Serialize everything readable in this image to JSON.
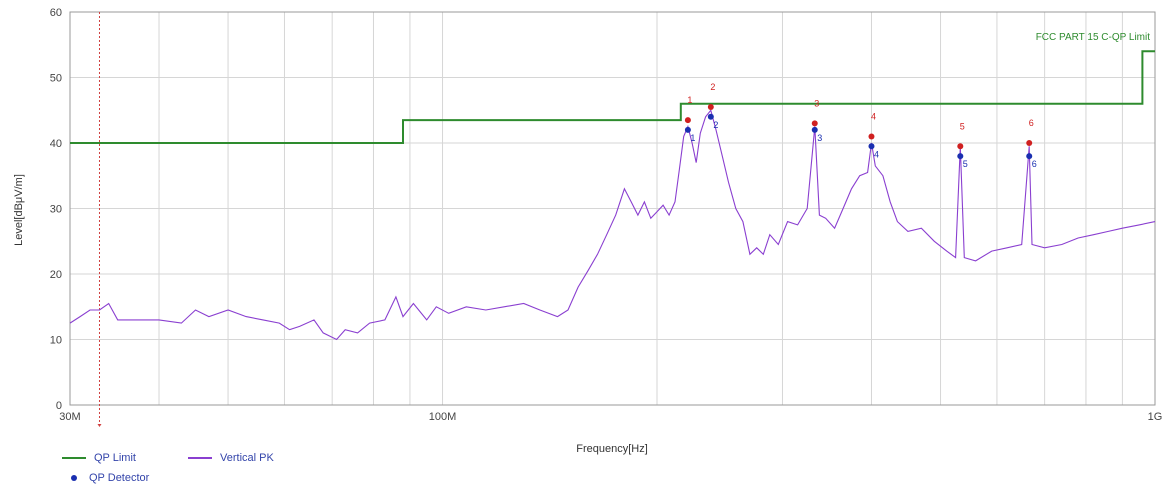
{
  "chart_data": {
    "type": "line",
    "xscale": "log",
    "xlabel": "Frequency[Hz]",
    "ylabel": "Level[dBμV/m]",
    "xlim": [
      30000000,
      1000000000
    ],
    "ylim": [
      0,
      60
    ],
    "grid": true,
    "x_ticks": [
      {
        "value": 30000000,
        "label": "30M"
      },
      {
        "value": 100000000,
        "label": "100M"
      },
      {
        "value": 1000000000,
        "label": "1G"
      }
    ],
    "y_ticks": [
      0,
      10,
      20,
      30,
      40,
      50,
      60
    ],
    "limit_label": "FCC PART 15 C-QP Limit",
    "colors": {
      "limit": "#2e8b2e",
      "pk": "#8a3fd0",
      "qp": "#1a2fb0",
      "peak_marker": "#d02020",
      "marker_line": "#d04040",
      "grid": "#d6d6d6"
    },
    "marker_frequency": 33000000,
    "series": [
      {
        "name": "QP Limit",
        "kind": "step",
        "points": [
          [
            30000000,
            40.0
          ],
          [
            88000000,
            40.0
          ],
          [
            88000000,
            43.5
          ],
          [
            216000000,
            43.5
          ],
          [
            216000000,
            46.0
          ],
          [
            960000000,
            46.0
          ],
          [
            960000000,
            54.0
          ],
          [
            1000000000,
            54.0
          ]
        ]
      },
      {
        "name": "Vertical PK",
        "kind": "trace",
        "points": [
          [
            30000000,
            12.5
          ],
          [
            31000000,
            13.5
          ],
          [
            32000000,
            14.5
          ],
          [
            33000000,
            14.5
          ],
          [
            34000000,
            15.5
          ],
          [
            35000000,
            13.0
          ],
          [
            37000000,
            13.0
          ],
          [
            40000000,
            13.0
          ],
          [
            43000000,
            12.5
          ],
          [
            45000000,
            14.5
          ],
          [
            47000000,
            13.5
          ],
          [
            50000000,
            14.5
          ],
          [
            53000000,
            13.5
          ],
          [
            56000000,
            13.0
          ],
          [
            59000000,
            12.5
          ],
          [
            61000000,
            11.5
          ],
          [
            63000000,
            12.0
          ],
          [
            66000000,
            13.0
          ],
          [
            68000000,
            11.0
          ],
          [
            71000000,
            10.0
          ],
          [
            73000000,
            11.5
          ],
          [
            76000000,
            11.0
          ],
          [
            79000000,
            12.5
          ],
          [
            83000000,
            13.0
          ],
          [
            86000000,
            16.5
          ],
          [
            88000000,
            13.5
          ],
          [
            91000000,
            15.5
          ],
          [
            95000000,
            13.0
          ],
          [
            98000000,
            15.0
          ],
          [
            102000000,
            14.0
          ],
          [
            108000000,
            15.0
          ],
          [
            115000000,
            14.5
          ],
          [
            122000000,
            15.0
          ],
          [
            130000000,
            15.5
          ],
          [
            137000000,
            14.5
          ],
          [
            145000000,
            13.5
          ],
          [
            150000000,
            14.5
          ],
          [
            155000000,
            18.0
          ],
          [
            160000000,
            20.5
          ],
          [
            165000000,
            23.0
          ],
          [
            170000000,
            26.0
          ],
          [
            175000000,
            29.0
          ],
          [
            180000000,
            33.0
          ],
          [
            184000000,
            31.0
          ],
          [
            188000000,
            29.0
          ],
          [
            192000000,
            31.0
          ],
          [
            196000000,
            28.5
          ],
          [
            200000000,
            29.5
          ],
          [
            204000000,
            30.5
          ],
          [
            208000000,
            29.0
          ],
          [
            212000000,
            31.0
          ],
          [
            215000000,
            36.0
          ],
          [
            218000000,
            41.0
          ],
          [
            221000000,
            42.5
          ],
          [
            224000000,
            40.0
          ],
          [
            227000000,
            37.0
          ],
          [
            230000000,
            41.5
          ],
          [
            234000000,
            44.0
          ],
          [
            238000000,
            45.0
          ],
          [
            242000000,
            42.0
          ],
          [
            247000000,
            38.0
          ],
          [
            252000000,
            34.0
          ],
          [
            258000000,
            30.0
          ],
          [
            264000000,
            28.0
          ],
          [
            270000000,
            23.0
          ],
          [
            276000000,
            24.0
          ],
          [
            282000000,
            23.0
          ],
          [
            288000000,
            26.0
          ],
          [
            296000000,
            24.5
          ],
          [
            305000000,
            28.0
          ],
          [
            315000000,
            27.5
          ],
          [
            325000000,
            30.0
          ],
          [
            333000000,
            42.5
          ],
          [
            338000000,
            29.0
          ],
          [
            345000000,
            28.5
          ],
          [
            355000000,
            27.0
          ],
          [
            365000000,
            30.0
          ],
          [
            375000000,
            33.0
          ],
          [
            385000000,
            35.0
          ],
          [
            395000000,
            35.5
          ],
          [
            400000000,
            40.0
          ],
          [
            405000000,
            36.5
          ],
          [
            415000000,
            35.0
          ],
          [
            425000000,
            31.0
          ],
          [
            435000000,
            28.0
          ],
          [
            450000000,
            26.5
          ],
          [
            470000000,
            27.0
          ],
          [
            490000000,
            25.0
          ],
          [
            510000000,
            23.5
          ],
          [
            525000000,
            22.5
          ],
          [
            533000000,
            39.5
          ],
          [
            540000000,
            22.5
          ],
          [
            560000000,
            22.0
          ],
          [
            590000000,
            23.5
          ],
          [
            620000000,
            24.0
          ],
          [
            650000000,
            24.5
          ],
          [
            666000000,
            39.5
          ],
          [
            672000000,
            24.5
          ],
          [
            700000000,
            24.0
          ],
          [
            740000000,
            24.5
          ],
          [
            780000000,
            25.5
          ],
          [
            820000000,
            26.0
          ],
          [
            860000000,
            26.5
          ],
          [
            900000000,
            27.0
          ],
          [
            950000000,
            27.5
          ],
          [
            1000000000,
            28.0
          ]
        ]
      },
      {
        "name": "QP Detector",
        "kind": "markers",
        "points": [
          [
            221000000,
            42.0
          ],
          [
            238000000,
            44.0
          ],
          [
            333000000,
            42.0
          ],
          [
            400000000,
            39.5
          ],
          [
            533000000,
            38.0
          ],
          [
            666000000,
            38.0
          ]
        ]
      }
    ],
    "peak_points": [
      [
        221000000,
        43.5
      ],
      [
        238000000,
        45.5
      ],
      [
        333000000,
        43.0
      ],
      [
        400000000,
        41.0
      ],
      [
        533000000,
        39.5
      ],
      [
        666000000,
        40.0
      ]
    ],
    "peak_labels": [
      "1",
      "2",
      "3",
      "4",
      "5",
      "6"
    ]
  },
  "legend": {
    "qp_limit": "QP Limit",
    "vertical_pk": "Vertical PK",
    "qp_detector": "QP Detector"
  }
}
